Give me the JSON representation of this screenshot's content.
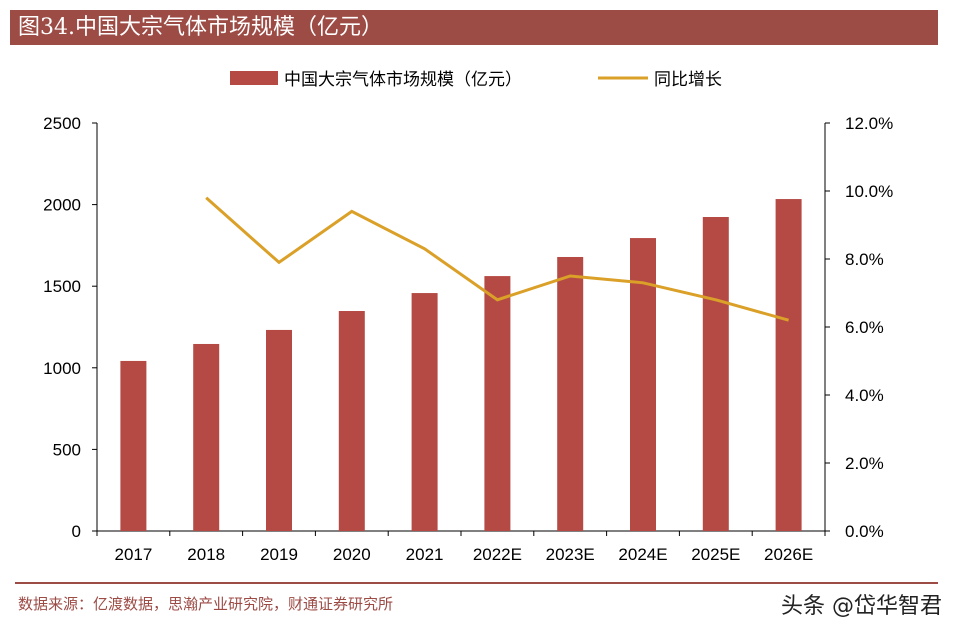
{
  "title": "图34.中国大宗气体市场规模（亿元）",
  "source": "数据来源：亿渡数据，思瀚产业研究院，财通证券研究所",
  "watermark": "头条 @岱华智君",
  "chart_data": {
    "type": "bar+line",
    "categories": [
      "2017",
      "2018",
      "2019",
      "2020",
      "2021",
      "2022E",
      "2023E",
      "2024E",
      "2025E",
      "2026E"
    ],
    "series": [
      {
        "name": "中国大宗气体市场规模（亿元）",
        "type": "bar",
        "axis": "left",
        "color": "#b54a45",
        "values": [
          1042,
          1146,
          1232,
          1348,
          1458,
          1562,
          1679,
          1795,
          1924,
          2034
        ]
      },
      {
        "name": "同比增长",
        "type": "line",
        "axis": "right",
        "color": "#daa028",
        "values": [
          null,
          9.8,
          7.9,
          9.4,
          8.3,
          6.8,
          7.5,
          7.3,
          6.8,
          6.2
        ]
      }
    ],
    "left_axis": {
      "ylim": [
        0,
        2500
      ],
      "ticks": [
        "0",
        "500",
        "1000",
        "1500",
        "2000",
        "2500"
      ]
    },
    "right_axis": {
      "ylim": [
        0,
        12
      ],
      "ticks": [
        "0.0%",
        "2.0%",
        "4.0%",
        "6.0%",
        "8.0%",
        "10.0%",
        "12.0%"
      ]
    },
    "legend": "top",
    "grid": false
  }
}
